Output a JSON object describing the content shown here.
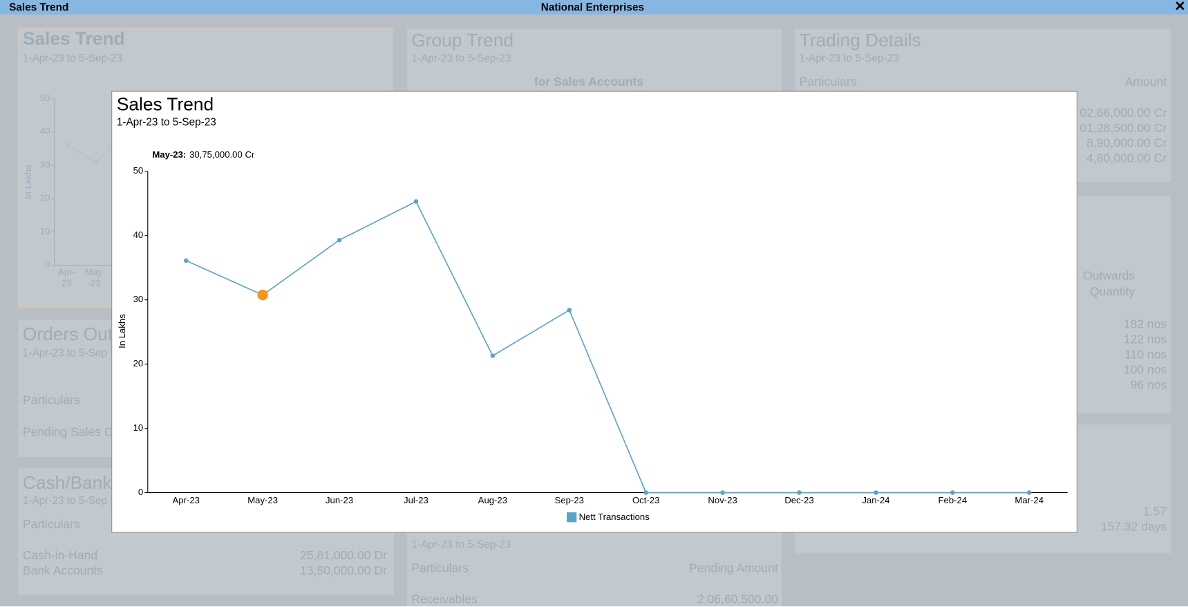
{
  "window": {
    "title": "Sales Trend",
    "company": "National Enterprises"
  },
  "dashboard": {
    "sales_trend": {
      "title": "Sales Trend",
      "period": "1-Apr-23 to 5-Sep-23"
    },
    "group_trend": {
      "title": "Group Trend",
      "period": "1-Apr-23 to 5-Sep-23",
      "subtitle": "for Sales Accounts"
    },
    "trading_details": {
      "title": "Trading Details",
      "period": "1-Apr-23 to 5-Sep-23",
      "headers": [
        "Particulars",
        "Amount"
      ],
      "amounts": [
        "02,66,000.00 Cr",
        "01,28,500.00 Cr",
        "8,90,000.00 Cr",
        "4,80,000.00 Cr"
      ]
    },
    "stock": {
      "headers": [
        "Outwards",
        "Quantity"
      ],
      "quantities": [
        "182 nos",
        "122 nos",
        "110 nos",
        "100 nos",
        "96 nos"
      ]
    },
    "ratios": {
      "values": [
        "1.57",
        "157.32 days"
      ]
    },
    "orders": {
      "title": "Orders Out",
      "period": "1-Apr-23 to 5-Sep",
      "header": "Particulars",
      "rows": [
        "Pending Sales O"
      ]
    },
    "cash_bank": {
      "title": "Cash/Bank",
      "period": "1-Apr-23 to 5-Sep",
      "header": "Particulars",
      "rows": [
        [
          "Cash-in-Hand",
          "25,81,000.00 Dr"
        ],
        [
          "Bank Accounts",
          "13,50,000.00 Dr"
        ]
      ]
    },
    "outstanding": {
      "period": "1-Apr-23 to 5-Sep-23",
      "headers": [
        "Particulars",
        "Pending Amount"
      ],
      "rows": [
        [
          "Receivables",
          "2,06,60,500.00"
        ]
      ]
    }
  },
  "chart_data": {
    "type": "line",
    "title": "Sales Trend",
    "subtitle": "1-Apr-23 to 5-Sep-23",
    "y_label": "In Lakhs",
    "categories": [
      "Apr-23",
      "May-23",
      "Jun-23",
      "Jul-23",
      "Aug-23",
      "Sep-23",
      "Oct-23",
      "Nov-23",
      "Dec-23",
      "Jan-24",
      "Feb-24",
      "Mar-24"
    ],
    "series": [
      {
        "name": "Nett Transactions",
        "color": "#5ba3c9",
        "values": [
          36.1,
          30.75,
          39.3,
          45.3,
          21.3,
          28.4,
          0,
          0,
          0,
          0,
          0,
          0
        ]
      }
    ],
    "ylim": [
      0,
      50
    ],
    "yticks": [
      0,
      10,
      20,
      30,
      40,
      50
    ],
    "highlight": {
      "index": 1,
      "color": "#f7941d"
    },
    "tooltip": {
      "label": "May-23:",
      "value": "30,75,000.00 Cr"
    }
  }
}
